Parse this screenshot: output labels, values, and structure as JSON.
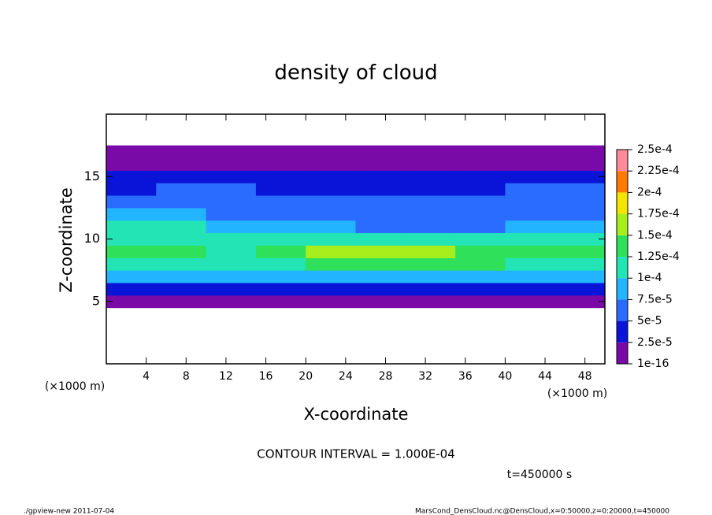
{
  "chart_data": {
    "type": "heatmap",
    "title": "density of cloud",
    "x_label": "X-coordinate",
    "y_label": "Z-coordinate",
    "y_unit": "(×1000 m)",
    "x_unit": "(×1000 m)",
    "annotation": "CONTOUR INTERVAL = 1.000E-04",
    "time": "t=450000 s",
    "footer_left": "./gpview-new  2011-07-04",
    "footer_right": "MarsCond_DensCloud.nc@DensCloud,x=0:50000,z=0:20000,t=450000",
    "xlim": [
      0,
      50
    ],
    "ylim": [
      0,
      20
    ],
    "xticks": [
      4,
      8,
      12,
      16,
      20,
      24,
      28,
      32,
      36,
      40,
      44,
      48
    ],
    "yticks": [
      5,
      10,
      15
    ],
    "x": [
      2.5,
      7.5,
      12.5,
      17.5,
      22.5,
      27.5,
      32.5,
      37.5,
      42.5,
      47.5
    ],
    "z": [
      5,
      6,
      7,
      8,
      9,
      10,
      11,
      12,
      13,
      14,
      15,
      16,
      17
    ],
    "values": [
      [
        5e-06,
        5e-06,
        5e-06,
        5e-06,
        5e-06,
        5e-06,
        5e-06,
        5e-06,
        5e-06,
        5e-06
      ],
      [
        3e-05,
        3e-05,
        2.5e-05,
        3e-05,
        3e-05,
        3e-05,
        3e-05,
        3e-05,
        3e-05,
        3e-05
      ],
      [
        9e-05,
        9e-05,
        8e-05,
        8e-05,
        9e-05,
        9e-05,
        9e-05,
        9e-05,
        9e-05,
        9e-05
      ],
      [
        0.00012,
        0.00012,
        0.00011,
        0.00012,
        0.00013,
        0.00014,
        0.00014,
        0.00013,
        0.00012,
        0.00012
      ],
      [
        0.00013,
        0.00013,
        0.00012,
        0.00013,
        0.00015,
        0.00017,
        0.00017,
        0.00014,
        0.00013,
        0.00013
      ],
      [
        0.00012,
        0.00012,
        0.00011,
        0.00011,
        0.00012,
        0.00011,
        0.00012,
        0.00011,
        0.00011,
        0.00011
      ],
      [
        0.0001,
        0.0001,
        9e-05,
        8e-05,
        8e-05,
        7e-05,
        7e-05,
        7e-05,
        8e-05,
        9e-05
      ],
      [
        8e-05,
        9e-05,
        7e-05,
        6e-05,
        6e-05,
        6e-05,
        5.5e-05,
        6e-05,
        7e-05,
        7e-05
      ],
      [
        6e-05,
        7e-05,
        6e-05,
        5e-05,
        5e-05,
        5e-05,
        5e-05,
        5e-05,
        6e-05,
        6e-05
      ],
      [
        4.5e-05,
        5e-05,
        5e-05,
        4.5e-05,
        4.5e-05,
        4.5e-05,
        4e-05,
        4.5e-05,
        5e-05,
        5e-05
      ],
      [
        4e-05,
        4e-05,
        4e-05,
        4e-05,
        3.5e-05,
        3.5e-05,
        3.5e-05,
        4e-05,
        4e-05,
        4e-05
      ],
      [
        1.5e-05,
        1.5e-05,
        1.5e-05,
        1.5e-05,
        1.5e-05,
        1.5e-05,
        1.5e-05,
        1.5e-05,
        1.5e-05,
        1.5e-05
      ],
      [
        5e-06,
        5e-06,
        5e-06,
        5e-06,
        5e-06,
        5e-06,
        5e-06,
        5e-06,
        5e-06,
        5e-06
      ]
    ],
    "levels": [
      {
        "value": 1e-16,
        "label": "1e-16"
      },
      {
        "value": 2.5e-05,
        "label": "2.5e-5"
      },
      {
        "value": 5e-05,
        "label": "5e-5"
      },
      {
        "value": 7.5e-05,
        "label": "7.5e-5"
      },
      {
        "value": 0.0001,
        "label": "1e-4"
      },
      {
        "value": 0.000125,
        "label": "1.25e-4"
      },
      {
        "value": 0.00015,
        "label": "1.5e-4"
      },
      {
        "value": 0.000175,
        "label": "1.75e-4"
      },
      {
        "value": 0.0002,
        "label": "2e-4"
      },
      {
        "value": 0.000225,
        "label": "2.25e-4"
      },
      {
        "value": 0.00025,
        "label": "2.5e-4"
      }
    ],
    "colors": [
      "#7a0aa8",
      "#0a14d8",
      "#2a6cff",
      "#22b4ff",
      "#22e4b4",
      "#2ee05a",
      "#a8ee1c",
      "#f4e400",
      "#ff7a00",
      "#ff8a9a"
    ]
  }
}
